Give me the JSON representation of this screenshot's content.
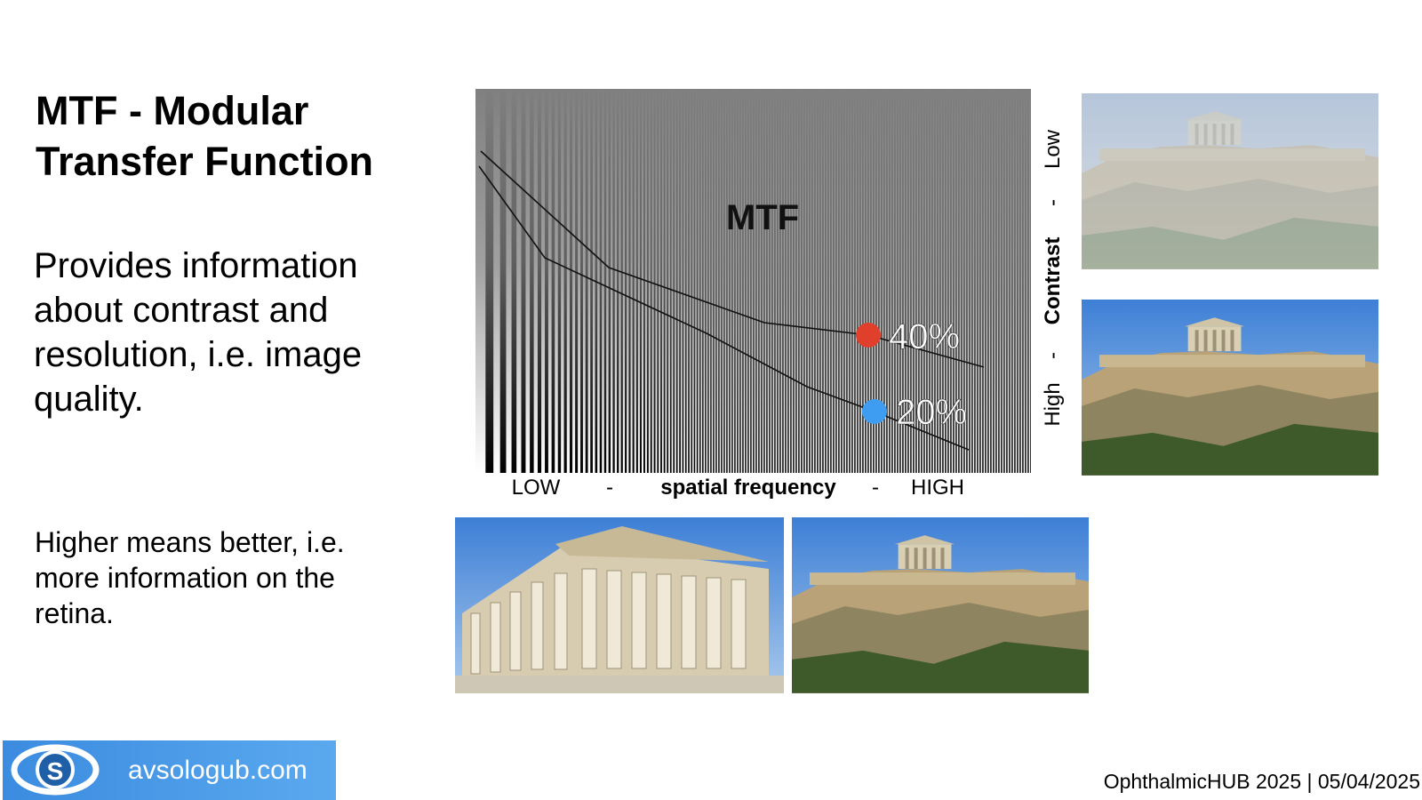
{
  "slide": {
    "title": "MTF - Modular Transfer Function",
    "body": "Provides information about contrast and resolution, i.e. image quality.",
    "note": "Higher means better, i.e. more information on the retina.",
    "figure": {
      "label": "MTF",
      "points": [
        {
          "label": "40%"
        },
        {
          "label": "20%"
        }
      ],
      "x_axis": [
        "LOW",
        "-",
        "spatial frequency",
        "-",
        "HIGH"
      ],
      "y_axis": [
        "High",
        "-",
        "Contrast",
        "-",
        "Low"
      ]
    },
    "logo": {
      "text": "avsologub.com"
    },
    "footer": "OphthalmicHUB 2025 | 05/04/2025"
  }
}
